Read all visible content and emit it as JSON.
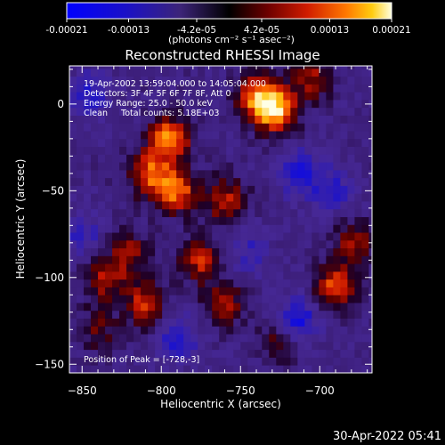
{
  "chart_data": {
    "type": "heatmap",
    "title": "Reconstructed RHESSI Image",
    "xlabel": "Heliocentric X (arcsec)",
    "ylabel": "Heliocentric Y (arcsec)",
    "xlim": [
      -858,
      -667
    ],
    "ylim": [
      -155,
      22
    ],
    "x_ticks": [
      -850,
      -800,
      -750,
      -700
    ],
    "y_ticks": [
      0,
      -50,
      -100,
      -150
    ],
    "colorbar": {
      "min": -0.00021,
      "max": 0.00021,
      "tick_values": [
        -0.00021,
        -0.00013,
        -4.2e-05,
        4.2e-05,
        0.00013,
        0.00021
      ],
      "tick_labels": [
        "-0.00021",
        "-0.00013",
        "-4.2e-05",
        "4.2e-05",
        "0.00013",
        "0.00021"
      ],
      "unit_label": "(photons cm⁻² s⁻¹ asec⁻²)"
    },
    "annotations": [
      "19-Apr-2002 13:59:04.000 to 14:05:04.000",
      "Detectors: 3F 4F 5F 6F 7F 8F, Att 0",
      "Energy Range: 25.0 - 50.0 keV",
      "Clean     Total counts: 5.18E+03"
    ],
    "peak_label": "Position of Peak = [-728,-3]",
    "peak": [
      -728,
      -3
    ],
    "bright_sources": [
      {
        "x": -728,
        "y": -3,
        "value": 0.00021
      },
      {
        "x": -795,
        "y": -20,
        "value": 0.00018
      },
      {
        "x": -808,
        "y": -40,
        "value": 0.00015
      },
      {
        "x": -790,
        "y": -50,
        "value": 0.00016
      },
      {
        "x": -760,
        "y": -55,
        "value": 0.00012
      },
      {
        "x": -740,
        "y": 5,
        "value": 0.00015
      },
      {
        "x": -705,
        "y": 15,
        "value": 0.0001
      },
      {
        "x": -820,
        "y": -85,
        "value": 9e-05
      },
      {
        "x": -835,
        "y": -100,
        "value": 0.00012
      },
      {
        "x": -810,
        "y": -115,
        "value": 0.00013
      },
      {
        "x": -775,
        "y": -90,
        "value": 0.00012
      },
      {
        "x": -760,
        "y": -115,
        "value": 0.0001
      },
      {
        "x": -690,
        "y": -105,
        "value": 0.00015
      },
      {
        "x": -678,
        "y": -80,
        "value": 0.0001
      },
      {
        "x": -725,
        "y": -135,
        "value": 8e-05
      },
      {
        "x": -840,
        "y": -130,
        "value": 7e-05
      }
    ],
    "dark_sources": [
      {
        "x": -845,
        "y": 5,
        "value": -9e-05
      },
      {
        "x": -712,
        "y": -40,
        "value": -0.00011
      },
      {
        "x": -690,
        "y": -50,
        "value": -8e-05
      },
      {
        "x": -715,
        "y": -125,
        "value": -0.00013
      },
      {
        "x": -790,
        "y": -135,
        "value": -9e-05
      },
      {
        "x": -850,
        "y": -75,
        "value": -7e-05
      },
      {
        "x": -745,
        "y": -85,
        "value": -6e-05
      }
    ]
  },
  "timestamp": "30-Apr-2022 05:41"
}
